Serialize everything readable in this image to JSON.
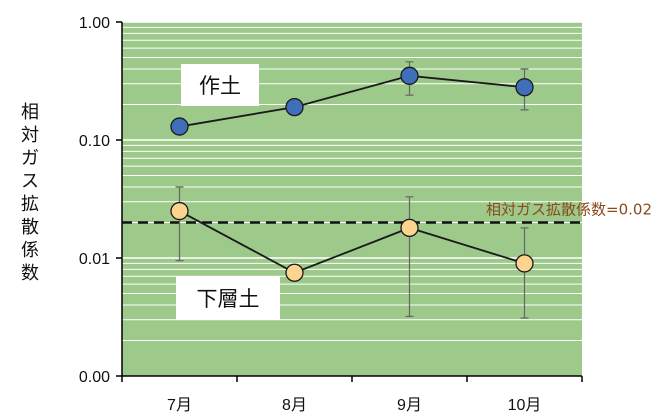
{
  "chart_data": {
    "type": "line",
    "categories": [
      "7月",
      "8月",
      "9月",
      "10月"
    ],
    "yscale": "log",
    "ylim": [
      0.001,
      1.0
    ],
    "ylabel": "相対ガス拡散係数",
    "ytick_labels": [
      "1.00",
      "0.10",
      "0.01",
      "0.00"
    ],
    "ytick_values": [
      1.0,
      0.1,
      0.01,
      0.001
    ],
    "grid": true,
    "series": [
      {
        "name": "作土",
        "values": [
          0.13,
          0.19,
          0.35,
          0.28
        ],
        "error_low": [
          null,
          null,
          0.24,
          0.18
        ],
        "error_high": [
          null,
          null,
          0.46,
          0.4
        ],
        "marker_color": "#3f6fb8"
      },
      {
        "name": "下層土",
        "values": [
          0.025,
          0.0075,
          0.018,
          0.009
        ],
        "error_low": [
          0.0095,
          null,
          0.0032,
          0.0031
        ],
        "error_high": [
          0.04,
          null,
          0.033,
          0.018
        ],
        "marker_color": "#fcd48f"
      }
    ],
    "reference_line": {
      "value": 0.02,
      "label": "相対ガス拡散係数=0.02",
      "color": "#8b4a1c"
    },
    "colors": {
      "plot_bg": "#9dc98a",
      "grid": "#ffffff",
      "line": "#1a1a1a",
      "error": "#666666"
    }
  }
}
